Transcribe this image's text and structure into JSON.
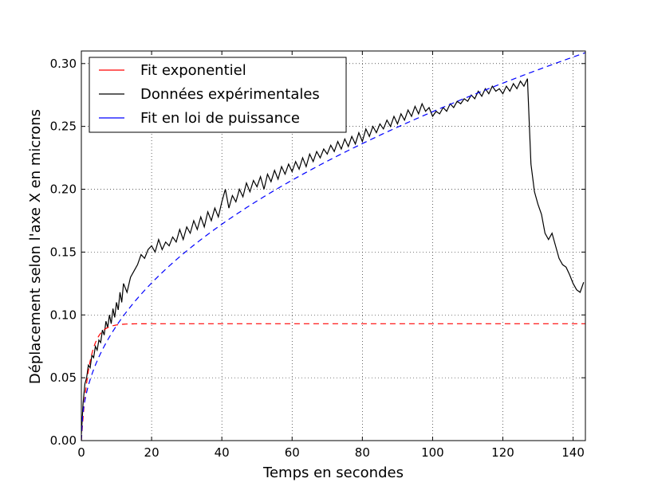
{
  "chart_data": {
    "type": "line",
    "title": "",
    "xlabel": "Temps en secondes",
    "ylabel": "Déplacement selon l'axe X en microns",
    "xlim": [
      0,
      143.5
    ],
    "ylim": [
      0,
      0.31
    ],
    "xticks": [
      0,
      20,
      40,
      60,
      80,
      100,
      120,
      140
    ],
    "yticks": [
      0.0,
      0.05,
      0.1,
      0.15,
      0.2,
      0.25,
      0.3
    ],
    "xtick_labels": [
      "0",
      "20",
      "40",
      "60",
      "80",
      "100",
      "120",
      "140"
    ],
    "ytick_labels": [
      "0.00",
      "0.05",
      "0.10",
      "0.15",
      "0.20",
      "0.25",
      "0.30"
    ],
    "grid": true,
    "grid_style": "dotted",
    "legend_position": "top-left",
    "series": [
      {
        "name": "Fit exponentiel",
        "color": "#ff0000",
        "style": "dashed",
        "model": {
          "kind": "exp_saturation",
          "a": 0.093,
          "tau": 2.2
        },
        "x_range": [
          0,
          143.5
        ]
      },
      {
        "name": "Données expérimentales",
        "color": "#000000",
        "style": "solid",
        "x": [
          0,
          0.5,
          1,
          1.5,
          2,
          2.5,
          3,
          3.5,
          4,
          4.5,
          5,
          5.5,
          6,
          6.5,
          7,
          7.5,
          8,
          8.5,
          9,
          9.5,
          10,
          10.5,
          11,
          11.5,
          12,
          13,
          14,
          15,
          16,
          17,
          18,
          19,
          20,
          21,
          22,
          23,
          24,
          25,
          26,
          27,
          28,
          29,
          30,
          31,
          32,
          33,
          34,
          35,
          36,
          37,
          38,
          39,
          40,
          41,
          42,
          43,
          44,
          45,
          46,
          47,
          48,
          49,
          50,
          51,
          52,
          53,
          54,
          55,
          56,
          57,
          58,
          59,
          60,
          61,
          62,
          63,
          64,
          65,
          66,
          67,
          68,
          69,
          70,
          71,
          72,
          73,
          74,
          75,
          76,
          77,
          78,
          79,
          80,
          81,
          82,
          83,
          84,
          85,
          86,
          87,
          88,
          89,
          90,
          91,
          92,
          93,
          94,
          95,
          96,
          97,
          98,
          99,
          100,
          101,
          102,
          103,
          104,
          105,
          106,
          107,
          108,
          109,
          110,
          111,
          112,
          113,
          114,
          115,
          116,
          117,
          118,
          119,
          120,
          121,
          122,
          123,
          124,
          125,
          126,
          127,
          128,
          129,
          130,
          131,
          132,
          133,
          134,
          135,
          136,
          137,
          138,
          139,
          140,
          141,
          142,
          143
        ],
        "y": [
          0.005,
          0.03,
          0.045,
          0.05,
          0.06,
          0.058,
          0.068,
          0.066,
          0.075,
          0.072,
          0.08,
          0.078,
          0.088,
          0.084,
          0.095,
          0.09,
          0.1,
          0.093,
          0.105,
          0.098,
          0.11,
          0.104,
          0.118,
          0.11,
          0.125,
          0.118,
          0.13,
          0.135,
          0.14,
          0.148,
          0.145,
          0.152,
          0.155,
          0.15,
          0.16,
          0.152,
          0.158,
          0.155,
          0.162,
          0.158,
          0.168,
          0.16,
          0.17,
          0.165,
          0.175,
          0.168,
          0.178,
          0.17,
          0.182,
          0.175,
          0.185,
          0.178,
          0.19,
          0.2,
          0.185,
          0.195,
          0.19,
          0.2,
          0.194,
          0.205,
          0.198,
          0.207,
          0.202,
          0.21,
          0.2,
          0.212,
          0.206,
          0.215,
          0.208,
          0.218,
          0.212,
          0.22,
          0.214,
          0.222,
          0.216,
          0.225,
          0.218,
          0.228,
          0.222,
          0.23,
          0.225,
          0.232,
          0.228,
          0.235,
          0.23,
          0.238,
          0.232,
          0.24,
          0.234,
          0.242,
          0.236,
          0.245,
          0.238,
          0.248,
          0.242,
          0.25,
          0.245,
          0.252,
          0.248,
          0.255,
          0.25,
          0.258,
          0.252,
          0.26,
          0.255,
          0.263,
          0.258,
          0.266,
          0.26,
          0.268,
          0.262,
          0.265,
          0.258,
          0.262,
          0.26,
          0.265,
          0.262,
          0.268,
          0.265,
          0.27,
          0.268,
          0.272,
          0.27,
          0.275,
          0.272,
          0.278,
          0.274,
          0.28,
          0.276,
          0.282,
          0.278,
          0.28,
          0.276,
          0.282,
          0.278,
          0.284,
          0.28,
          0.286,
          0.282,
          0.288,
          0.22,
          0.198,
          0.188,
          0.18,
          0.165,
          0.16,
          0.165,
          0.155,
          0.145,
          0.14,
          0.138,
          0.132,
          0.125,
          0.12,
          0.118,
          0.126
        ]
      },
      {
        "name": "Fit en loi de puissance",
        "color": "#0000ff",
        "style": "dashed",
        "model": {
          "kind": "power_law",
          "a": 0.0319,
          "b": 0.457
        },
        "x_range": [
          0,
          143.5
        ]
      }
    ]
  }
}
